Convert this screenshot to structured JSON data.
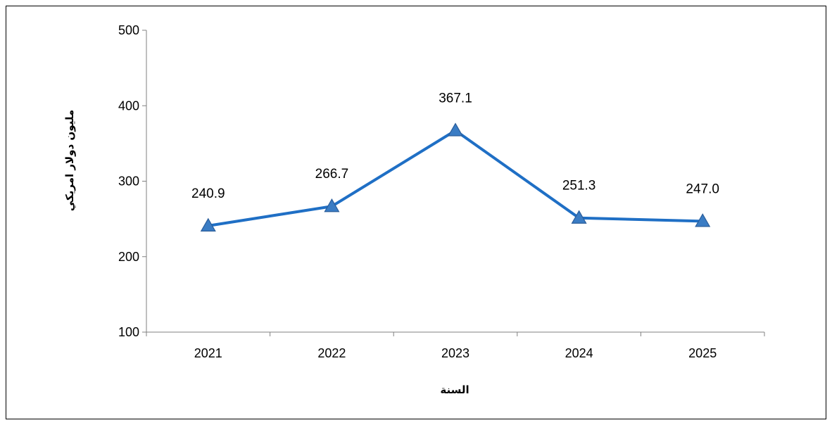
{
  "chart_data": {
    "type": "line",
    "categories": [
      "2021",
      "2022",
      "2023",
      "2024",
      "2025"
    ],
    "series": [
      {
        "values": [
          240.9,
          266.7,
          367.1,
          251.3,
          247.0
        ]
      }
    ],
    "data_labels": [
      "240.9",
      "266.7",
      "367.1",
      "251.3",
      "247.0"
    ],
    "yticks": [
      "100",
      "200",
      "300",
      "400",
      "500"
    ],
    "ylim": [
      100,
      500
    ],
    "xlabel": "السنة",
    "ylabel": "مليون دولار امريكي",
    "marker": "triangle",
    "grid": false,
    "legend": "none",
    "colors": {
      "line": "#1F6FC5",
      "marker": "#3A7CC4",
      "marker_edge": "#2A5D9A",
      "axis": "#808080"
    }
  }
}
